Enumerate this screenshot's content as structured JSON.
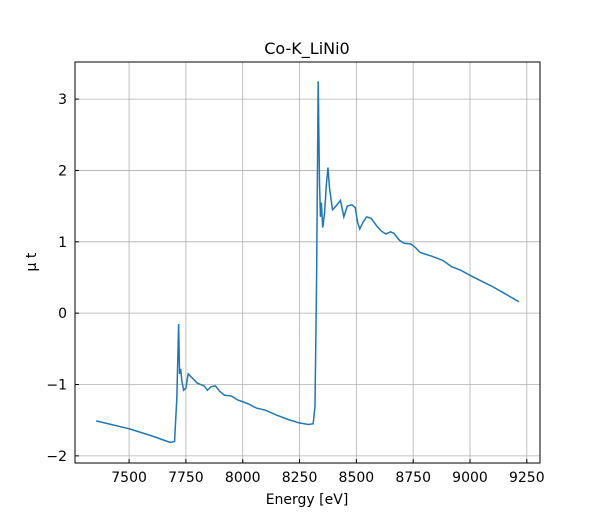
{
  "chart_data": {
    "type": "line",
    "title": "Co-K_LiNi0",
    "xlabel": "Energy [eV]",
    "ylabel": "μ t",
    "x": [
      7355,
      7500,
      7600,
      7680,
      7700,
      7710,
      7718,
      7722,
      7727,
      7732,
      7740,
      7750,
      7760,
      7775,
      7800,
      7830,
      7845,
      7860,
      7880,
      7900,
      7920,
      7950,
      7980,
      8000,
      8030,
      8060,
      8100,
      8150,
      8200,
      8250,
      8290,
      8310,
      8318,
      8325,
      8332,
      8338,
      8342,
      8346,
      8352,
      8360,
      8368,
      8375,
      8382,
      8395,
      8410,
      8430,
      8445,
      8460,
      8480,
      8495,
      8505,
      8515,
      8530,
      8545,
      8565,
      8590,
      8610,
      8630,
      8650,
      8665,
      8690,
      8710,
      8740,
      8760,
      8780,
      8830,
      8880,
      8920,
      8960,
      9000,
      9050,
      9100,
      9150,
      9215
    ],
    "series": [
      {
        "name": "Co-K_LiNi0",
        "color": "#1f77b4",
        "values": [
          -1.51,
          -1.62,
          -1.72,
          -1.81,
          -1.8,
          -1.2,
          -0.15,
          -0.85,
          -0.78,
          -0.95,
          -1.08,
          -1.05,
          -0.85,
          -0.9,
          -0.98,
          -1.02,
          -1.08,
          -1.03,
          -1.02,
          -1.1,
          -1.15,
          -1.16,
          -1.22,
          -1.24,
          -1.28,
          -1.33,
          -1.36,
          -1.43,
          -1.49,
          -1.54,
          -1.56,
          -1.55,
          -1.3,
          0.5,
          3.25,
          1.8,
          1.35,
          1.55,
          1.2,
          1.4,
          1.8,
          2.04,
          1.75,
          1.45,
          1.5,
          1.58,
          1.35,
          1.5,
          1.52,
          1.48,
          1.28,
          1.18,
          1.28,
          1.35,
          1.33,
          1.22,
          1.15,
          1.11,
          1.14,
          1.12,
          1.02,
          0.98,
          0.97,
          0.92,
          0.85,
          0.8,
          0.74,
          0.65,
          0.6,
          0.53,
          0.45,
          0.37,
          0.28,
          0.16
        ]
      }
    ],
    "xlim": [
      7262,
      9308
    ],
    "ylim": [
      -2.1,
      3.52
    ],
    "xticks": [
      7500,
      7750,
      8000,
      8250,
      8500,
      8750,
      9000,
      9250
    ],
    "yticks": [
      {
        "value": -2,
        "label": "−2"
      },
      {
        "value": -1,
        "label": "−1"
      },
      0,
      1,
      2,
      3
    ],
    "grid": true
  }
}
